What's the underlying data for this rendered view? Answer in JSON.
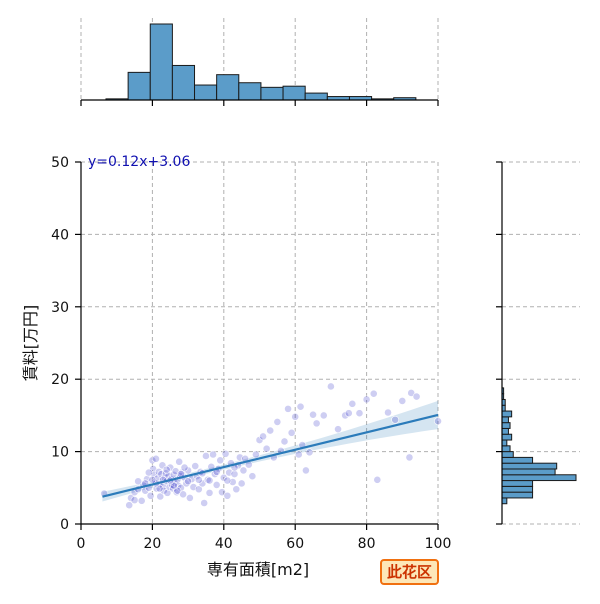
{
  "chart_data": {
    "type": "scatter",
    "title": "",
    "xlabel": "専有面積[m2]",
    "ylabel": "賃料[万円]",
    "xlim": [
      0,
      100
    ],
    "ylim": [
      0,
      50
    ],
    "x_ticks": [
      0,
      20,
      40,
      60,
      80,
      100
    ],
    "y_ticks": [
      0,
      10,
      20,
      30,
      40,
      50
    ],
    "grid": true,
    "regression": {
      "slope": 0.12,
      "intercept": 3.06,
      "label": "y=0.12x+3.06",
      "x_range": [
        6,
        100
      ]
    },
    "point_color": "#3a3acc",
    "line_color": "#2b7bba",
    "hist_color": "#5b9cc9",
    "x_hist": {
      "bin_edges": [
        7,
        13.2,
        19.4,
        25.6,
        31.8,
        38,
        44.2,
        50.4,
        56.6,
        62.8,
        69,
        75.2,
        81.4,
        87.6,
        93.8,
        100
      ],
      "counts": [
        1,
        24,
        66,
        30,
        13,
        22,
        15,
        11,
        12,
        6,
        3,
        3,
        1,
        2,
        0
      ]
    },
    "y_hist": {
      "bin_edges": [
        2.8,
        3.6,
        4.4,
        5.2,
        6.0,
        6.8,
        7.6,
        8.4,
        9.2,
        10.0,
        10.8,
        11.6,
        12.4,
        13.2,
        14.0,
        14.8,
        15.6,
        16.4,
        17.2,
        18.0,
        18.8
      ],
      "counts": [
        3,
        19,
        19,
        19,
        46,
        33,
        34,
        19,
        7,
        5,
        3,
        6,
        4,
        5,
        4,
        6,
        2,
        2,
        1,
        1
      ]
    },
    "points": [
      [
        6.5,
        4.2
      ],
      [
        13.5,
        2.6
      ],
      [
        14,
        3.6
      ],
      [
        15,
        4.4
      ],
      [
        16,
        4.8
      ],
      [
        17,
        3.2
      ],
      [
        17.5,
        5.4
      ],
      [
        18,
        4.6
      ],
      [
        18.5,
        6.2
      ],
      [
        19,
        5.0
      ],
      [
        19.5,
        3.9
      ],
      [
        20,
        8.8
      ],
      [
        20.2,
        7.6
      ],
      [
        20.5,
        6.8
      ],
      [
        20.8,
        5.8
      ],
      [
        21,
        9.0
      ],
      [
        21.2,
        4.9
      ],
      [
        21.5,
        6.3
      ],
      [
        21.8,
        7.2
      ],
      [
        22,
        5.5
      ],
      [
        22.2,
        3.8
      ],
      [
        22.5,
        6.9
      ],
      [
        22.8,
        8.1
      ],
      [
        23,
        5.2
      ],
      [
        23.2,
        4.6
      ],
      [
        23.5,
        6.4
      ],
      [
        23.8,
        7.0
      ],
      [
        24,
        5.9
      ],
      [
        24.2,
        4.3
      ],
      [
        24.5,
        6.7
      ],
      [
        24.8,
        5.1
      ],
      [
        25,
        7.8
      ],
      [
        25.2,
        6.2
      ],
      [
        25.5,
        5.4
      ],
      [
        25.8,
        4.9
      ],
      [
        26,
        6.8
      ],
      [
        26.2,
        5.7
      ],
      [
        26.5,
        7.3
      ],
      [
        26.8,
        4.4
      ],
      [
        27,
        6.1
      ],
      [
        27.2,
        5.3
      ],
      [
        27.5,
        8.6
      ],
      [
        27.8,
        6.6
      ],
      [
        28,
        5.0
      ],
      [
        28.3,
        7.1
      ],
      [
        28.6,
        4.1
      ],
      [
        29,
        6.4
      ],
      [
        29.5,
        5.6
      ],
      [
        30,
        7.4
      ],
      [
        30.5,
        3.6
      ],
      [
        31,
        6.2
      ],
      [
        31.5,
        5.1
      ],
      [
        32,
        8.0
      ],
      [
        32.5,
        6.6
      ],
      [
        33,
        4.8
      ],
      [
        33.5,
        7.2
      ],
      [
        34,
        5.6
      ],
      [
        34.5,
        2.9
      ],
      [
        35,
        9.4
      ],
      [
        35.5,
        6.1
      ],
      [
        36,
        4.3
      ],
      [
        36.5,
        7.9
      ],
      [
        37,
        9.6
      ],
      [
        37.5,
        6.9
      ],
      [
        38,
        5.4
      ],
      [
        38.5,
        7.6
      ],
      [
        39,
        8.8
      ],
      [
        39.5,
        4.4
      ],
      [
        40,
        6.4
      ],
      [
        40.5,
        9.7
      ],
      [
        41,
        3.9
      ],
      [
        41.5,
        7.1
      ],
      [
        42,
        8.4
      ],
      [
        42.5,
        5.8
      ],
      [
        43,
        6.9
      ],
      [
        43.5,
        4.8
      ],
      [
        44,
        8.1
      ],
      [
        44.5,
        9.2
      ],
      [
        45,
        5.6
      ],
      [
        45.5,
        7.4
      ],
      [
        46,
        9.0
      ],
      [
        47,
        8.2
      ],
      [
        48,
        6.6
      ],
      [
        49,
        9.6
      ],
      [
        50,
        11.6
      ],
      [
        51,
        12.1
      ],
      [
        52,
        10.4
      ],
      [
        53,
        12.9
      ],
      [
        54,
        9.2
      ],
      [
        55,
        14.1
      ],
      [
        56,
        10.1
      ],
      [
        57,
        11.4
      ],
      [
        58,
        15.9
      ],
      [
        59,
        12.6
      ],
      [
        60,
        14.8
      ],
      [
        61,
        9.6
      ],
      [
        61.5,
        16.2
      ],
      [
        62,
        10.9
      ],
      [
        63,
        7.4
      ],
      [
        64,
        9.9
      ],
      [
        65,
        15.1
      ],
      [
        66,
        13.9
      ],
      [
        68,
        15.0
      ],
      [
        70,
        19.0
      ],
      [
        72,
        13.1
      ],
      [
        74,
        15.0
      ],
      [
        75,
        15.3
      ],
      [
        76,
        16.6
      ],
      [
        78,
        15.3
      ],
      [
        80,
        17.2
      ],
      [
        82,
        18.0
      ],
      [
        83,
        6.1
      ],
      [
        86,
        15.4
      ],
      [
        88,
        14.4
      ],
      [
        90,
        17.0
      ],
      [
        92,
        9.2
      ],
      [
        92.5,
        18.1
      ],
      [
        94,
        17.6
      ],
      [
        100,
        14.2
      ],
      [
        30,
        5.9
      ],
      [
        29,
        7.8
      ],
      [
        28,
        6.9
      ],
      [
        27,
        4.6
      ],
      [
        26,
        5.3
      ],
      [
        25,
        6.0
      ],
      [
        24,
        7.5
      ],
      [
        23,
        6.1
      ],
      [
        22,
        4.9
      ],
      [
        21,
        5.6
      ],
      [
        20,
        6.1
      ],
      [
        19,
        7.1
      ],
      [
        18,
        5.6
      ],
      [
        16,
        5.9
      ],
      [
        15,
        3.3
      ],
      [
        33,
        6.1
      ],
      [
        34,
        7.0
      ],
      [
        36,
        6.0
      ],
      [
        38,
        7.2
      ],
      [
        41,
        6.0
      ],
      [
        43,
        7.8
      ]
    ]
  },
  "badge_text": "此花区"
}
